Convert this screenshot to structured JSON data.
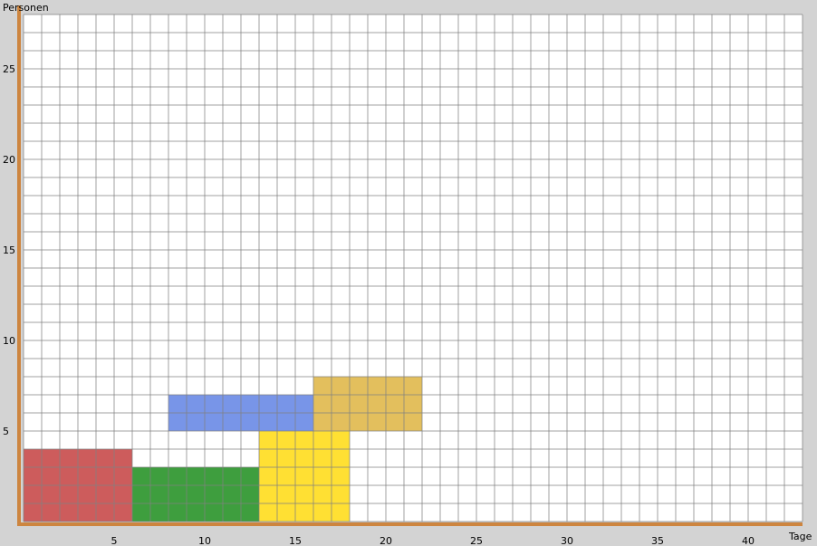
{
  "colors": {
    "background": "#d3d3d3",
    "plot_background": "#ffffff",
    "grid": "#808080",
    "axis": "#cd853f"
  },
  "chart_data": {
    "type": "bar",
    "xlabel": "Tage",
    "ylabel": "Personen",
    "xlim": [
      0,
      43
    ],
    "ylim": [
      0,
      28
    ],
    "x_ticks": [
      "5",
      "10",
      "15",
      "20",
      "25",
      "30",
      "35",
      "40"
    ],
    "y_ticks": [
      "5",
      "10",
      "15",
      "20",
      "25"
    ],
    "grid": true,
    "blocks": [
      {
        "x_start": 0,
        "x_end": 6,
        "y_start": 0,
        "y_end": 4,
        "color": "#cd5c5c"
      },
      {
        "x_start": 6,
        "x_end": 13,
        "y_start": 0,
        "y_end": 3,
        "color": "#3e9e3e"
      },
      {
        "x_start": 13,
        "x_end": 18,
        "y_start": 0,
        "y_end": 5,
        "color": "#ffe033"
      },
      {
        "x_start": 8,
        "x_end": 16,
        "y_start": 5,
        "y_end": 7,
        "color": "#7895e8"
      },
      {
        "x_start": 16,
        "x_end": 22,
        "y_start": 5,
        "y_end": 8,
        "color": "#e3bf5d"
      }
    ]
  }
}
